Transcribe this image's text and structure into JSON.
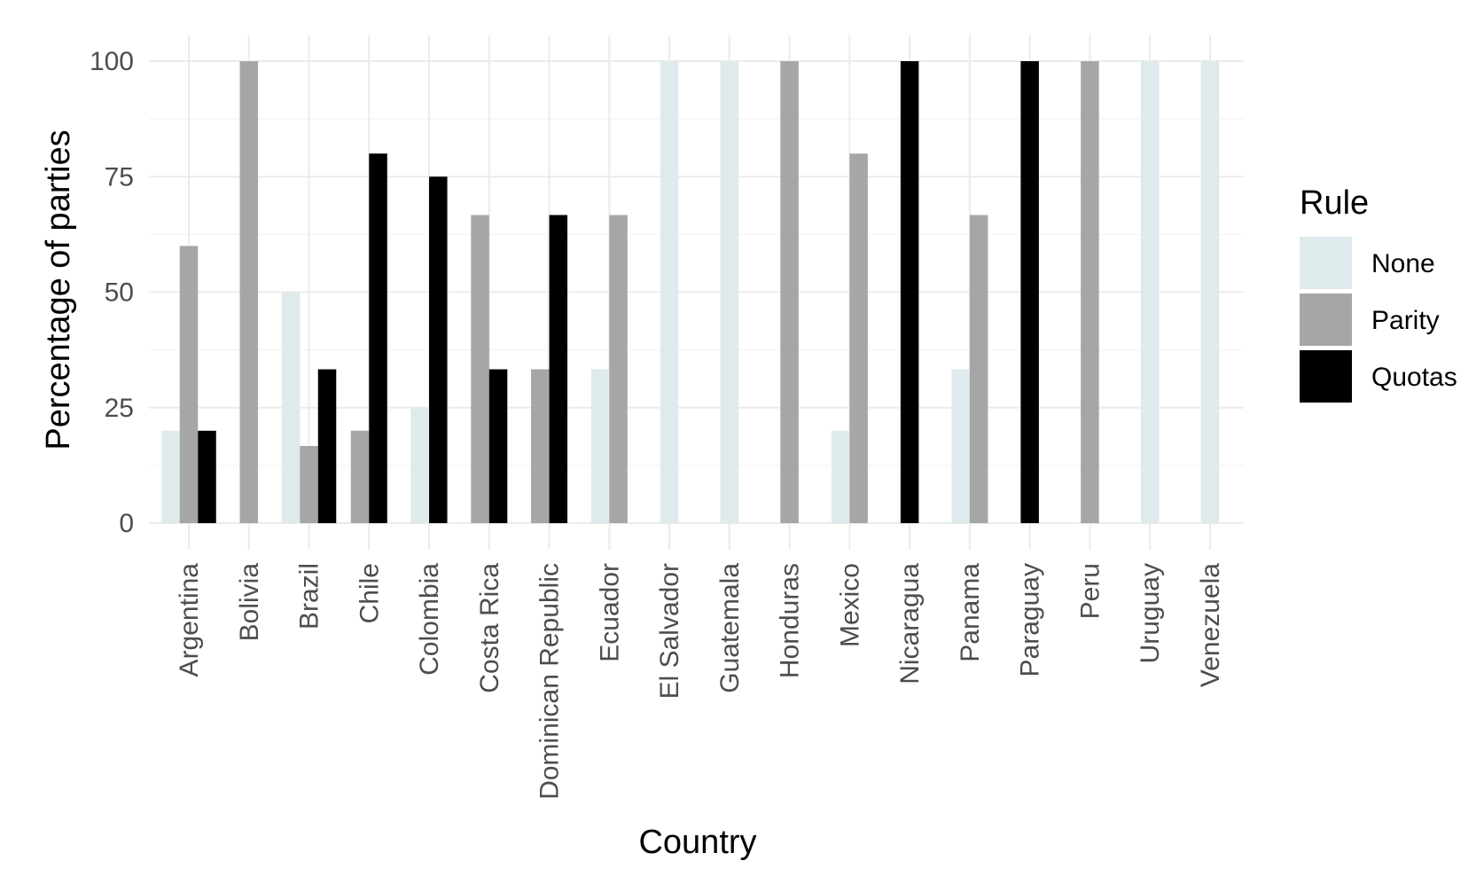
{
  "chart_data": {
    "type": "bar",
    "xlabel": "Country",
    "ylabel": "Percentage of parties",
    "ylim": [
      0,
      100
    ],
    "yticks": [
      0,
      25,
      50,
      75,
      100
    ],
    "grid": true,
    "legend": {
      "title": "Rule",
      "position": "right",
      "entries": [
        "None",
        "Parity",
        "Quotas"
      ]
    },
    "colors": {
      "None": "#deeaec",
      "Parity": "#a6a6a6",
      "Quotas": "#000000"
    },
    "categories": [
      "Argentina",
      "Bolivia",
      "Brazil",
      "Chile",
      "Colombia",
      "Costa Rica",
      "Dominican Republic",
      "Ecuador",
      "El Salvador",
      "Guatemala",
      "Honduras",
      "Mexico",
      "Nicaragua",
      "Panama",
      "Paraguay",
      "Peru",
      "Uruguay",
      "Venezuela"
    ],
    "bars": [
      {
        "category": "Argentina",
        "rule": "None",
        "value": 20
      },
      {
        "category": "Argentina",
        "rule": "Parity",
        "value": 60
      },
      {
        "category": "Argentina",
        "rule": "Quotas",
        "value": 20
      },
      {
        "category": "Bolivia",
        "rule": "Parity",
        "value": 100
      },
      {
        "category": "Brazil",
        "rule": "None",
        "value": 50
      },
      {
        "category": "Brazil",
        "rule": "Parity",
        "value": 16.7
      },
      {
        "category": "Brazil",
        "rule": "Quotas",
        "value": 33.3
      },
      {
        "category": "Chile",
        "rule": "Parity",
        "value": 20
      },
      {
        "category": "Chile",
        "rule": "Quotas",
        "value": 80
      },
      {
        "category": "Colombia",
        "rule": "None",
        "value": 25
      },
      {
        "category": "Colombia",
        "rule": "Quotas",
        "value": 75
      },
      {
        "category": "Costa Rica",
        "rule": "Parity",
        "value": 66.7
      },
      {
        "category": "Costa Rica",
        "rule": "Quotas",
        "value": 33.3
      },
      {
        "category": "Dominican Republic",
        "rule": "Parity",
        "value": 33.3
      },
      {
        "category": "Dominican Republic",
        "rule": "Quotas",
        "value": 66.7
      },
      {
        "category": "Ecuador",
        "rule": "None",
        "value": 33.3
      },
      {
        "category": "Ecuador",
        "rule": "Parity",
        "value": 66.7
      },
      {
        "category": "El Salvador",
        "rule": "None",
        "value": 100
      },
      {
        "category": "Guatemala",
        "rule": "None",
        "value": 100
      },
      {
        "category": "Honduras",
        "rule": "Parity",
        "value": 100
      },
      {
        "category": "Mexico",
        "rule": "None",
        "value": 20
      },
      {
        "category": "Mexico",
        "rule": "Parity",
        "value": 80
      },
      {
        "category": "Nicaragua",
        "rule": "Quotas",
        "value": 100
      },
      {
        "category": "Panama",
        "rule": "None",
        "value": 33.3
      },
      {
        "category": "Panama",
        "rule": "Parity",
        "value": 66.7
      },
      {
        "category": "Paraguay",
        "rule": "Quotas",
        "value": 100
      },
      {
        "category": "Peru",
        "rule": "Parity",
        "value": 100
      },
      {
        "category": "Uruguay",
        "rule": "None",
        "value": 100
      },
      {
        "category": "Venezuela",
        "rule": "None",
        "value": 100
      }
    ]
  }
}
